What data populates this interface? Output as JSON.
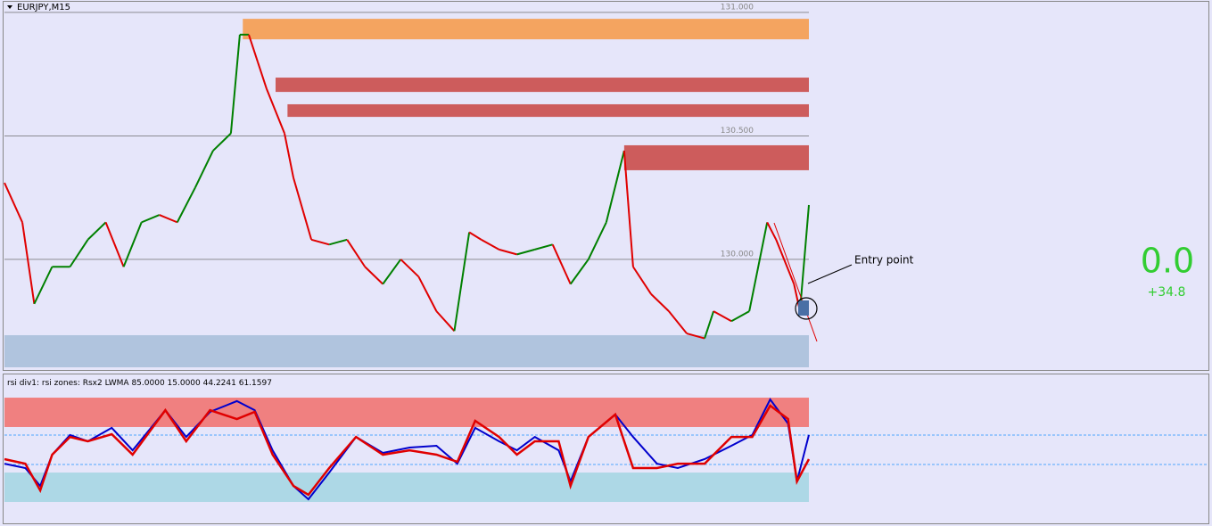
{
  "header": {
    "symbol": "EURJPY,M15"
  },
  "annotation": "Entry point",
  "profit": {
    "value": {
      "value": 0,
      "label": "0.0"
    },
    "change": {
      "value": 34.8,
      "label": "+34.8"
    }
  },
  "chart_data": [
    {
      "type": "line",
      "x": [
        0,
        6,
        10,
        16,
        22,
        28,
        34,
        40,
        46,
        52,
        58,
        64,
        70,
        76,
        79,
        82,
        85,
        88,
        94,
        97,
        103,
        109,
        115,
        121,
        127,
        133,
        139,
        145,
        151,
        156,
        160,
        166,
        172,
        178,
        184,
        190,
        196,
        202,
        208,
        211,
        217,
        223,
        229,
        235,
        238,
        244,
        250,
        256,
        259,
        265,
        267,
        270
      ],
      "xlim": [
        0,
        270
      ],
      "ylim": [
        129.563,
        131.043
      ],
      "yticks": [
        {
          "value": 131,
          "label": "131.000"
        },
        {
          "value": 130.5,
          "label": "130.500"
        },
        {
          "value": 130,
          "label": "130.000"
        }
      ],
      "grid": true,
      "series": [
        {
          "up_color": "#008000",
          "down_color": "#e00000",
          "values": [
            130.31,
            130.15,
            129.82,
            129.97,
            129.97,
            130.08,
            130.15,
            129.97,
            130.15,
            130.18,
            130.15,
            130.29,
            130.44,
            130.51,
            130.91,
            130.91,
            130.8,
            130.69,
            130.51,
            130.33,
            130.08,
            130.06,
            130.08,
            129.97,
            129.9,
            130.0,
            129.93,
            129.79,
            129.71,
            130.11,
            130.08,
            130.04,
            130.02,
            130.04,
            130.06,
            129.9,
            130.0,
            130.15,
            130.44,
            129.97,
            129.86,
            129.79,
            129.7,
            129.68,
            129.79,
            129.75,
            129.79,
            130.15,
            130.08,
            129.9,
            129.79,
            130.22
          ]
        }
      ],
      "zones": [
        {
          "from": 80,
          "low": 130.891,
          "high": 130.974,
          "color": "#f4a460"
        },
        {
          "from": 91,
          "low": 130.678,
          "high": 130.736,
          "color": "#cd5c5c"
        },
        {
          "from": 95,
          "low": 130.577,
          "high": 130.628,
          "color": "#cd5c5c"
        },
        {
          "from": 208,
          "low": 130.361,
          "high": 130.462,
          "color": "#cd5c5c"
        },
        {
          "from": 0,
          "low": 129.563,
          "high": 129.693,
          "color": "#b0c4de"
        }
      ]
    },
    {
      "type": "line",
      "title": "rsi div1: rsi zones: Rsx2 LWMA",
      "params": [
        {
          "value": 85,
          "label": "85.0000"
        },
        {
          "value": 15,
          "label": "15.0000"
        },
        44.2241,
        61.1597
      ],
      "x": [
        0,
        7,
        12,
        16,
        22,
        28,
        36,
        43,
        54,
        61,
        69,
        78,
        84,
        90,
        97,
        102,
        109,
        118,
        127,
        136,
        145,
        152,
        158,
        166,
        172,
        178,
        186,
        190,
        196,
        205,
        211,
        219,
        226,
        235,
        244,
        251,
        257,
        263,
        266,
        270
      ],
      "xlim": [
        0,
        270
      ],
      "ylim": [
        10.9,
        94.0
      ],
      "zones": [
        {
          "low": 65.8,
          "high": 82.7,
          "color": "#f08080"
        },
        {
          "low": 22.7,
          "high": 39.6,
          "color": "#add8e6"
        }
      ],
      "series": [
        {
          "color": "#0000cd",
          "values": [
            44.7,
            42.2,
            31.9,
            49.9,
            61.2,
            57.6,
            65.3,
            52.4,
            75.5,
            60.1,
            74.5,
            80.7,
            75.5,
            52.4,
            31.9,
            24.2,
            39.6,
            60.1,
            50.9,
            54.0,
            55.0,
            44.7,
            65.3,
            57.6,
            52.4,
            60.1,
            52.4,
            34.5,
            60.1,
            73.0,
            60.1,
            44.7,
            42.2,
            47.3,
            55.0,
            61.2,
            81.7,
            67.8,
            34.5,
            61.2
          ]
        },
        {
          "color": "#e00000",
          "values": [
            47.3,
            44.7,
            29.3,
            49.9,
            60.1,
            57.6,
            61.7,
            49.9,
            75.5,
            57.6,
            75.5,
            70.4,
            74.5,
            49.9,
            31.9,
            26.8,
            42.2,
            60.1,
            49.9,
            52.4,
            49.9,
            45.8,
            69.4,
            60.1,
            49.9,
            57.6,
            57.6,
            31.9,
            60.1,
            73.0,
            42.2,
            42.2,
            44.7,
            44.7,
            60.1,
            60.1,
            78.1,
            70.4,
            34.5,
            47.3
          ]
        }
      ]
    }
  ]
}
